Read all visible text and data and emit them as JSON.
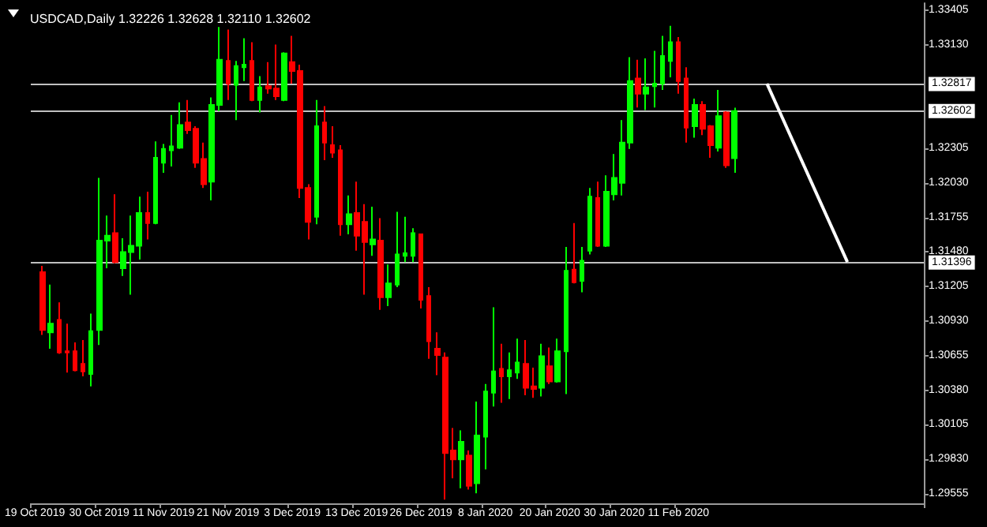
{
  "chart_data": {
    "type": "candlestick",
    "title": "USDCAD,Daily 1.32226 1.32628 1.32110 1.32602",
    "categories": [
      "19 Oct 2019",
      null,
      null,
      null,
      null,
      null,
      null,
      null,
      "30 Oct 2019",
      null,
      null,
      null,
      null,
      null,
      null,
      null,
      "11 Nov 2019",
      null,
      null,
      null,
      null,
      null,
      null,
      null,
      "21 Nov 2019",
      null,
      null,
      null,
      null,
      null,
      null,
      null,
      "3 Dec 2019",
      null,
      null,
      null,
      null,
      null,
      null,
      null,
      "13 Dec 2019",
      null,
      null,
      null,
      null,
      null,
      null,
      null,
      "26 Dec 2019",
      null,
      null,
      null,
      null,
      null,
      null,
      null,
      "8 Jan 2020",
      null,
      null,
      null,
      null,
      null,
      null,
      null,
      "20 Jan 2020",
      null,
      null,
      null,
      null,
      null,
      null,
      null,
      "30 Jan 2020",
      null,
      null,
      null,
      null,
      null,
      null,
      null,
      "11 Feb 2020",
      null,
      null,
      null,
      null,
      null,
      null,
      null,
      null,
      null,
      null,
      null,
      null,
      null,
      null,
      null,
      null,
      null,
      null,
      null,
      null,
      null,
      null,
      null,
      null,
      null,
      null,
      null,
      null,
      null,
      null
    ],
    "ohlc": [
      null,
      [
        1.3132,
        1.3137,
        1.3082,
        1.3086
      ],
      [
        1.3084,
        1.3122,
        1.3071,
        1.3091
      ],
      [
        1.3094,
        1.3108,
        1.3067,
        1.3068
      ],
      [
        1.3069,
        1.3091,
        1.3052,
        1.3068
      ],
      [
        1.3069,
        1.3076,
        1.3053,
        1.3054
      ],
      [
        1.3059,
        1.3078,
        1.3049,
        1.3053
      ],
      [
        1.3051,
        1.3099,
        1.3041,
        1.3085
      ],
      [
        1.3086,
        1.3207,
        1.3074,
        1.3157
      ],
      [
        1.3157,
        1.3177,
        1.3135,
        1.3161
      ],
      [
        1.3163,
        1.3194,
        1.3139,
        1.314
      ],
      [
        1.3135,
        1.3159,
        1.3129,
        1.3148
      ],
      [
        1.3148,
        1.3177,
        1.3114,
        1.3153
      ],
      [
        1.3153,
        1.3192,
        1.3142,
        1.3179
      ],
      [
        1.3179,
        1.3196,
        1.3158,
        1.3171
      ],
      [
        1.3171,
        1.3236,
        1.317,
        1.3223
      ],
      [
        1.3219,
        1.3234,
        1.3211,
        1.323
      ],
      [
        1.3229,
        1.3257,
        1.3216,
        1.3232
      ],
      [
        1.3231,
        1.3267,
        1.323,
        1.3249
      ],
      [
        1.3251,
        1.3269,
        1.3242,
        1.3245
      ],
      [
        1.3246,
        1.3248,
        1.3215,
        1.3219
      ],
      [
        1.3222,
        1.3235,
        1.3199,
        1.3202
      ],
      [
        1.3204,
        1.3271,
        1.3189,
        1.3265
      ],
      [
        1.3265,
        1.3327,
        1.326,
        1.3301
      ],
      [
        1.33,
        1.3325,
        1.3269,
        1.3282
      ],
      [
        1.3281,
        1.33,
        1.3253,
        1.3296
      ],
      [
        1.3295,
        1.3318,
        1.3284,
        1.3297
      ],
      [
        1.33,
        1.3315,
        1.3268,
        1.3269
      ],
      [
        1.3269,
        1.3288,
        1.3259,
        1.3279
      ],
      [
        1.328,
        1.3299,
        1.3274,
        1.3278
      ],
      [
        1.3278,
        1.3313,
        1.3269,
        1.3272
      ],
      [
        1.3269,
        1.3307,
        1.3268,
        1.3306
      ],
      [
        1.3299,
        1.332,
        1.3282,
        1.3292
      ],
      [
        1.3292,
        1.3297,
        1.3191,
        1.3199
      ],
      [
        1.3199,
        1.3202,
        1.3158,
        1.3172
      ],
      [
        1.3176,
        1.3269,
        1.317,
        1.3248
      ],
      [
        1.3251,
        1.3264,
        1.3221,
        1.3235
      ],
      [
        1.3233,
        1.3248,
        1.3223,
        1.3227
      ],
      [
        1.3229,
        1.3233,
        1.3161,
        1.317
      ],
      [
        1.317,
        1.3193,
        1.3162,
        1.3178
      ],
      [
        1.3179,
        1.3204,
        1.3149,
        1.3161
      ],
      [
        1.3172,
        1.3186,
        1.3114,
        1.3156
      ],
      [
        1.3154,
        1.3184,
        1.3145,
        1.3158
      ],
      [
        1.3157,
        1.3175,
        1.3102,
        1.3112
      ],
      [
        1.3112,
        1.3138,
        1.3105,
        1.3123
      ],
      [
        1.3122,
        1.318,
        1.312,
        1.3146
      ],
      [
        1.3145,
        1.3176,
        1.314,
        1.3147
      ],
      [
        1.3145,
        1.3167,
        1.314,
        1.3163
      ],
      [
        1.3162,
        1.3162,
        1.3103,
        1.311
      ],
      [
        1.3113,
        1.312,
        1.3063,
        1.3077
      ],
      [
        1.3071,
        1.3084,
        1.305,
        1.3066
      ],
      [
        1.3064,
        1.3068,
        1.2951,
        1.2988
      ],
      [
        1.299,
        1.3008,
        1.2968,
        1.2983
      ],
      [
        1.2983,
        1.3006,
        1.296,
        1.2997
      ],
      [
        1.2986,
        1.299,
        1.2959,
        1.2962
      ],
      [
        1.2964,
        1.3029,
        1.2956,
        1.3002
      ],
      [
        1.3001,
        1.3043,
        1.2975,
        1.3037
      ],
      [
        1.3036,
        1.3104,
        1.3025,
        1.3053
      ],
      [
        1.3055,
        1.3075,
        1.3028,
        1.3049
      ],
      [
        1.3049,
        1.3068,
        1.3031,
        1.3054
      ],
      [
        1.3052,
        1.3079,
        1.3047,
        1.306
      ],
      [
        1.3059,
        1.3078,
        1.3034,
        1.304
      ],
      [
        1.3041,
        1.3056,
        1.3032,
        1.3039
      ],
      [
        1.304,
        1.3075,
        1.3033,
        1.3065
      ],
      [
        1.3057,
        1.3072,
        1.3043,
        1.3045
      ],
      [
        1.3045,
        1.3079,
        1.3044,
        1.3069
      ],
      [
        1.3069,
        1.3152,
        1.3035,
        1.3133
      ],
      [
        1.3134,
        1.3171,
        1.3123,
        1.3124
      ],
      [
        1.3125,
        1.3152,
        1.3116,
        1.3141
      ],
      [
        1.3149,
        1.3199,
        1.3146,
        1.3192
      ],
      [
        1.3191,
        1.3204,
        1.3152,
        1.3153
      ],
      [
        1.3153,
        1.3209,
        1.3152,
        1.3196
      ],
      [
        1.3194,
        1.3226,
        1.3189,
        1.3207
      ],
      [
        1.3203,
        1.3253,
        1.3193,
        1.3235
      ],
      [
        1.3235,
        1.3303,
        1.323,
        1.3284
      ],
      [
        1.3286,
        1.3301,
        1.3263,
        1.3274
      ],
      [
        1.3274,
        1.3302,
        1.3261,
        1.3279
      ],
      [
        1.328,
        1.3308,
        1.3263,
        1.3282
      ],
      [
        1.3282,
        1.332,
        1.3277,
        1.3304
      ],
      [
        1.33,
        1.3328,
        1.3287,
        1.3315
      ],
      [
        1.3315,
        1.3319,
        1.3274,
        1.3284
      ],
      [
        1.3286,
        1.3295,
        1.3235,
        1.3247
      ],
      [
        1.3248,
        1.327,
        1.3239,
        1.3265
      ],
      [
        1.3265,
        1.3268,
        1.3241,
        1.3246
      ],
      [
        1.3248,
        1.3249,
        1.3223,
        1.3233
      ],
      [
        1.3231,
        1.3277,
        1.3228,
        1.3256
      ],
      [
        1.3259,
        1.326,
        1.3215,
        1.3217
      ],
      [
        1.32226,
        1.32628,
        1.3211,
        1.32602
      ],
      null,
      null,
      null,
      null,
      null,
      null,
      null,
      null,
      null,
      null,
      null,
      null,
      null,
      null,
      null,
      null,
      null,
      null,
      null,
      null,
      null,
      null,
      null
    ],
    "colors": [
      null,
      "#ff0000",
      "#00ff00",
      "#ff0000",
      "#ff0000",
      "#ff0000",
      "#ff0000",
      "#00ff00",
      "#00ff00",
      "#00ff00",
      "#ff0000",
      "#00ff00",
      "#00ff00",
      "#00ff00",
      "#ff0000",
      "#00ff00",
      "#00ff00",
      "#00ff00",
      "#00ff00",
      "#ff0000",
      "#ff0000",
      "#ff0000",
      "#00ff00",
      "#00ff00",
      "#ff0000",
      "#00ff00",
      "#00ff00",
      "#ff0000",
      "#00ff00",
      "#ff0000",
      "#ff0000",
      "#00ff00",
      "#ff0000",
      "#ff0000",
      "#ff0000",
      "#00ff00",
      "#ff0000",
      "#ff0000",
      "#ff0000",
      "#00ff00",
      "#ff0000",
      "#ff0000",
      "#00ff00",
      "#ff0000",
      "#00ff00",
      "#00ff00",
      "#00ff00",
      "#00ff00",
      "#ff0000",
      "#ff0000",
      "#ff0000",
      "#ff0000",
      "#ff0000",
      "#00ff00",
      "#ff0000",
      "#00ff00",
      "#00ff00",
      "#00ff00",
      "#ff0000",
      "#00ff00",
      "#00ff00",
      "#ff0000",
      "#ff0000",
      "#00ff00",
      "#ff0000",
      "#00ff00",
      "#00ff00",
      "#ff0000",
      "#00ff00",
      "#00ff00",
      "#ff0000",
      "#00ff00",
      "#00ff00",
      "#00ff00",
      "#00ff00",
      "#ff0000",
      "#00ff00",
      "#00ff00",
      "#00ff00",
      "#00ff00",
      "#ff0000",
      "#ff0000",
      "#00ff00",
      "#ff0000",
      "#ff0000",
      "#00ff00",
      "#ff0000",
      "#00ff00",
      null,
      null,
      null,
      null,
      null,
      null,
      null,
      null,
      null,
      null,
      null,
      null,
      null,
      null,
      null,
      null,
      null,
      null,
      null,
      null,
      null,
      null,
      null
    ],
    "series": [
      {
        "type": "line",
        "color": "#ffffff",
        "values": [
          null,
          null,
          null,
          null,
          null,
          null,
          null,
          null,
          null,
          null,
          null,
          null,
          null,
          null,
          null,
          null,
          null,
          null,
          null,
          null,
          null,
          null,
          null,
          null,
          null,
          null,
          null,
          null,
          null,
          null,
          null,
          null,
          null,
          null,
          null,
          null,
          null,
          null,
          null,
          null,
          null,
          null,
          null,
          null,
          null,
          null,
          null,
          null,
          null,
          null,
          null,
          null,
          null,
          null,
          null,
          null,
          null,
          null,
          null,
          null,
          null,
          null,
          null,
          null,
          null,
          null,
          null,
          null,
          null,
          null,
          null,
          null,
          null,
          null,
          null,
          null,
          null,
          null,
          null,
          null,
          null,
          null,
          null,
          null,
          null,
          null,
          null,
          null,
          null,
          null,
          null,
          1.3282,
          null,
          null,
          null,
          null,
          null,
          null,
          null,
          null,
          null,
          1.314,
          null,
          null,
          null,
          null,
          null,
          null,
          null,
          null,
          null
        ]
      }
    ],
    "ylim": [
      1.2948,
      1.3346
    ],
    "yticks": [
      1.29555,
      {
        "value": 1.2983,
        "label": "1.29830"
      },
      1.30105,
      {
        "value": 1.3038,
        "label": "1.30380"
      },
      1.30655,
      {
        "value": 1.3093,
        "label": "1.30930"
      },
      1.31205,
      {
        "value": 1.3148,
        "label": "1.31480"
      },
      1.31755,
      {
        "value": 1.3203,
        "label": "1.32030"
      },
      1.32305,
      {
        "value": 1.3313,
        "label": "1.33130"
      },
      1.33405
    ],
    "ref_lines": [
      {
        "axis": "y",
        "value": 1.32817,
        "label": "1.32817",
        "color": "#c0c0c0"
      },
      {
        "axis": "y",
        "value": 1.32602,
        "label": "1.32602",
        "color": "#c0c0c0"
      },
      {
        "axis": "y",
        "value": 1.31396,
        "label": "1.31396",
        "color": "#c0c0c0"
      }
    ]
  }
}
